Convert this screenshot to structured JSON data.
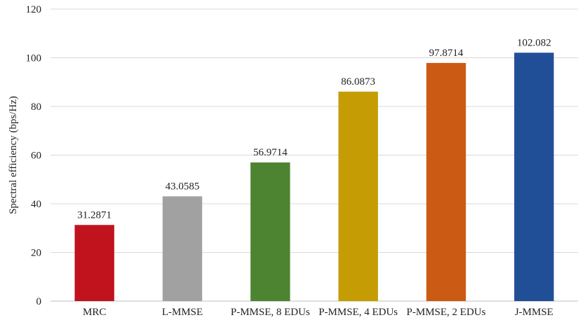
{
  "chart_data": {
    "type": "bar",
    "title": "",
    "xlabel": "",
    "ylabel": "Spectral efficiency (bps/Hz)",
    "ylim": [
      0,
      120
    ],
    "yticks": [
      0,
      20,
      40,
      60,
      80,
      100,
      120
    ],
    "grid": true,
    "legend": "none",
    "categories": [
      "MRC",
      "L-MMSE",
      "P-MMSE, 8 EDUs",
      "P-MMSE, 4 EDUs",
      "P-MMSE, 2 EDUs",
      "J-MMSE"
    ],
    "values": [
      31.2871,
      43.0585,
      56.9714,
      86.0873,
      97.8714,
      102.082
    ],
    "data_labels": [
      "31.2871",
      "43.0585",
      "56.9714",
      "86.0873",
      "97.8714",
      "102.082"
    ],
    "colors": [
      "#c0131e",
      "#a0a1a0",
      "#4c8431",
      "#c59c04",
      "#cb5b14",
      "#214f97"
    ]
  }
}
